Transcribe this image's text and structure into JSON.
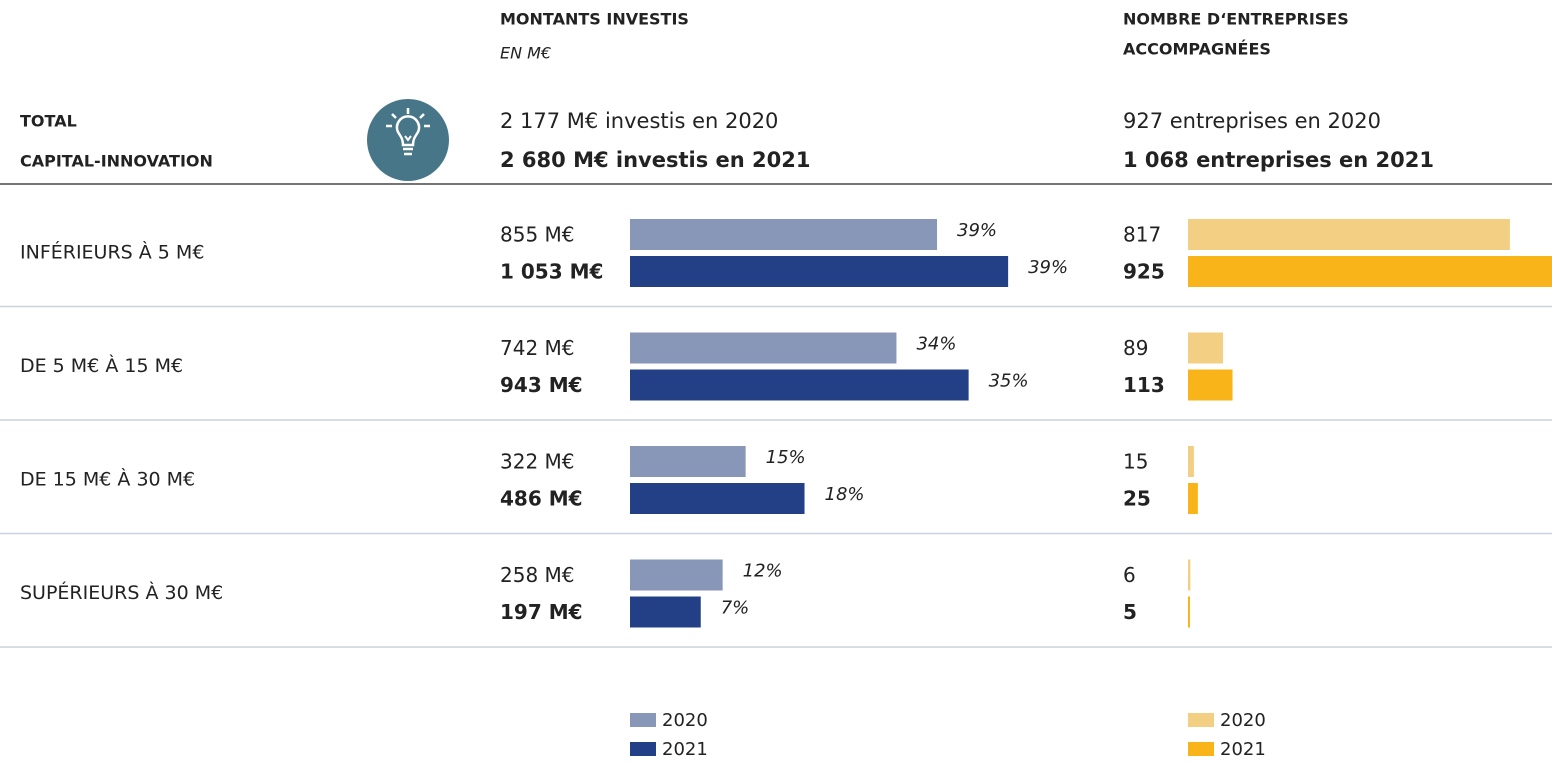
{
  "row_header": [
    "TOTAL",
    "CAPITAL-INNOVATION"
  ],
  "chart_data": [
    {
      "type": "bar",
      "orientation": "horizontal",
      "title": [
        "MONTANTS INVESTIS"
      ],
      "subtitle": "EN M€",
      "totals": [
        "2 177 M€ investis en 2020",
        "2 680 M€ investis en 2021"
      ],
      "categories": [
        "INFÉRIEURS À 5 M€",
        "DE 5 M€ À 15 M€",
        "DE 15 M€ À 30 M€",
        "SUPÉRIEURS À 30 M€"
      ],
      "xlim": [
        0,
        1100
      ],
      "series": [
        {
          "name": "2020",
          "color": "#8896b8",
          "values": [
            855,
            742,
            322,
            258
          ],
          "value_labels": [
            "855 M€",
            "742 M€",
            "322 M€",
            "258 M€"
          ],
          "shares": [
            39,
            34,
            15,
            12
          ],
          "share_labels": [
            "39%",
            "34%",
            "15%",
            "12%"
          ]
        },
        {
          "name": "2021",
          "color": "#233f85",
          "values": [
            1053,
            943,
            486,
            197
          ],
          "value_labels": [
            "1 053 M€",
            "943 M€",
            "486 M€",
            "197 M€"
          ],
          "shares": [
            39,
            35,
            18,
            7
          ],
          "share_labels": [
            "39%",
            "35%",
            "18%",
            "7%"
          ]
        }
      ]
    },
    {
      "type": "bar",
      "orientation": "horizontal",
      "title": [
        "NOMBRE D‘ENTREPRISES",
        "ACCOMPAGNÉES"
      ],
      "totals": [
        "927 entreprises en 2020",
        "1 068 entreprises en 2021"
      ],
      "xlim": [
        0,
        1000
      ],
      "series": [
        {
          "name": "2020",
          "color": "#f2cf82",
          "values": [
            817,
            89,
            15,
            6
          ]
        },
        {
          "name": "2021",
          "color": "#f8b418",
          "values": [
            925,
            113,
            25,
            5
          ]
        }
      ]
    }
  ]
}
